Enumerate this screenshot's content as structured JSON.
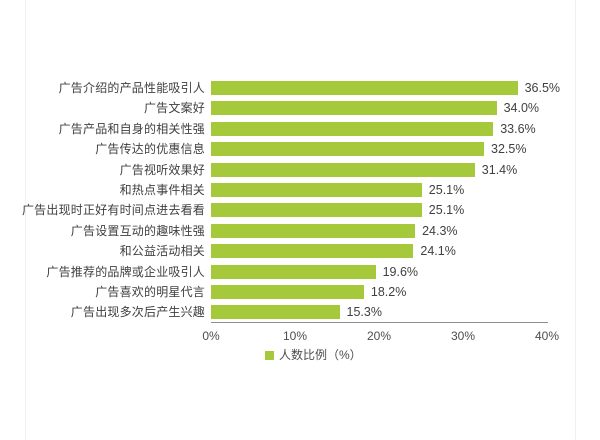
{
  "chart_data": {
    "type": "bar",
    "orientation": "horizontal",
    "title": "",
    "xlabel": "",
    "ylabel": "",
    "categories": [
      "广告介绍的产品性能吸引人",
      "广告文案好",
      "广告产品和自身的相关性强",
      "广告传达的优惠信息",
      "广告视听效果好",
      "和热点事件相关",
      "广告出现时正好有时间点进去看看",
      "广告设置互动的趣味性强",
      "和公益活动相关",
      "广告推荐的品牌或企业吸引人",
      "广告喜欢的明星代言",
      "广告出现多次后产生兴趣"
    ],
    "values": [
      36.5,
      34.0,
      33.6,
      32.5,
      31.4,
      25.1,
      25.1,
      24.3,
      24.1,
      19.6,
      18.2,
      15.3
    ],
    "value_labels": [
      "36.5%",
      "34.0%",
      "33.6%",
      "32.5%",
      "31.4%",
      "25.1%",
      "25.1%",
      "24.3%",
      "24.1%",
      "19.6%",
      "18.2%",
      "15.3%"
    ],
    "xlim": [
      0,
      40
    ],
    "x_ticks": [
      "0%",
      "10%",
      "20%",
      "30%",
      "40%"
    ],
    "x_tick_values": [
      0,
      10,
      20,
      30,
      40
    ],
    "grid": false,
    "legend_label": "人数比例（%）",
    "legend_position": "bottom",
    "bar_color": "#a6c93c",
    "text_color": "#404040",
    "axis_color": "#8f8f8f"
  }
}
